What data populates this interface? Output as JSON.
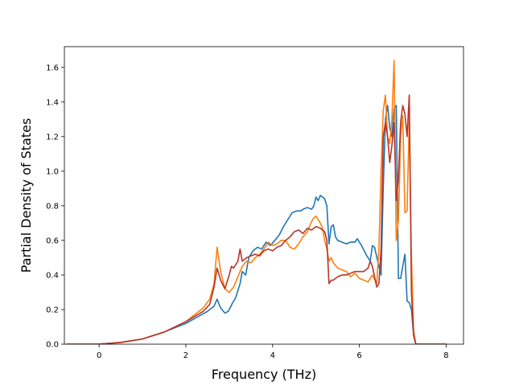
{
  "chart_data": {
    "type": "line",
    "title": "",
    "xlabel": "Frequency (THz)",
    "ylabel": "Partial Density of States",
    "xlim": [
      -0.8,
      8.4
    ],
    "ylim": [
      0.0,
      1.72
    ],
    "xticks": [
      0,
      2,
      4,
      6,
      8
    ],
    "xtick_labels": [
      "0",
      "2",
      "4",
      "6",
      "8"
    ],
    "yticks": [
      0.0,
      0.2,
      0.4,
      0.6,
      0.8,
      1.0,
      1.2,
      1.4,
      1.6
    ],
    "ytick_labels": [
      "0.0",
      "0.2",
      "0.4",
      "0.6",
      "0.8",
      "1.0",
      "1.2",
      "1.4",
      "1.6"
    ],
    "grid": false,
    "legend": "none",
    "colors": [
      "#1f77b4",
      "#ff7f0e",
      "#b8352a"
    ],
    "series": [
      {
        "color": "#1f77b4",
        "x": [
          -0.75,
          0.0,
          0.5,
          1.0,
          1.5,
          2.0,
          2.5,
          2.65,
          2.72,
          2.8,
          2.9,
          2.98,
          3.08,
          3.15,
          3.25,
          3.3,
          3.38,
          3.45,
          3.55,
          3.65,
          3.75,
          3.85,
          3.95,
          4.05,
          4.15,
          4.25,
          4.35,
          4.45,
          4.55,
          4.65,
          4.7,
          4.8,
          4.9,
          4.95,
          5.0,
          5.05,
          5.1,
          5.15,
          5.2,
          5.25,
          5.3,
          5.35,
          5.4,
          5.45,
          5.5,
          5.6,
          5.7,
          5.8,
          5.9,
          5.95,
          6.0,
          6.05,
          6.15,
          6.25,
          6.3,
          6.35,
          6.45,
          6.5,
          6.55,
          6.6,
          6.65,
          6.7,
          6.75,
          6.8,
          6.85,
          6.9,
          6.95,
          7.0,
          7.05,
          7.1,
          7.15,
          7.2,
          7.25,
          7.3,
          8.0
        ],
        "y": [
          0.0,
          0.0,
          0.01,
          0.03,
          0.07,
          0.12,
          0.19,
          0.22,
          0.26,
          0.21,
          0.18,
          0.19,
          0.24,
          0.27,
          0.35,
          0.42,
          0.4,
          0.5,
          0.54,
          0.56,
          0.55,
          0.59,
          0.57,
          0.6,
          0.63,
          0.68,
          0.72,
          0.76,
          0.77,
          0.77,
          0.78,
          0.79,
          0.78,
          0.8,
          0.85,
          0.83,
          0.86,
          0.85,
          0.84,
          0.8,
          0.58,
          0.68,
          0.69,
          0.62,
          0.6,
          0.59,
          0.58,
          0.59,
          0.59,
          0.61,
          0.59,
          0.57,
          0.52,
          0.48,
          0.57,
          0.56,
          0.45,
          0.4,
          0.9,
          1.3,
          1.38,
          1.25,
          1.2,
          1.36,
          1.38,
          0.38,
          0.38,
          0.45,
          0.52,
          0.25,
          0.24,
          0.2,
          0.05,
          0.0,
          0.0
        ]
      },
      {
        "color": "#ff7f0e",
        "x": [
          -0.75,
          0.0,
          0.5,
          1.0,
          1.5,
          2.0,
          2.4,
          2.55,
          2.65,
          2.72,
          2.8,
          2.9,
          3.0,
          3.1,
          3.2,
          3.3,
          3.4,
          3.5,
          3.6,
          3.7,
          3.8,
          3.9,
          4.0,
          4.1,
          4.2,
          4.3,
          4.4,
          4.5,
          4.6,
          4.7,
          4.8,
          4.9,
          4.95,
          5.0,
          5.05,
          5.1,
          5.15,
          5.2,
          5.25,
          5.3,
          5.35,
          5.4,
          5.5,
          5.6,
          5.7,
          5.8,
          5.9,
          6.0,
          6.1,
          6.2,
          6.3,
          6.4,
          6.45,
          6.5,
          6.55,
          6.6,
          6.65,
          6.7,
          6.75,
          6.8,
          6.85,
          6.9,
          6.95,
          7.0,
          7.05,
          7.1,
          7.15,
          7.2,
          7.25,
          7.3,
          8.0
        ],
        "y": [
          0.0,
          0.0,
          0.01,
          0.03,
          0.07,
          0.13,
          0.21,
          0.26,
          0.35,
          0.56,
          0.42,
          0.32,
          0.3,
          0.33,
          0.39,
          0.45,
          0.48,
          0.47,
          0.5,
          0.52,
          0.55,
          0.59,
          0.57,
          0.58,
          0.6,
          0.6,
          0.56,
          0.55,
          0.58,
          0.62,
          0.65,
          0.71,
          0.73,
          0.74,
          0.72,
          0.7,
          0.67,
          0.6,
          0.55,
          0.48,
          0.5,
          0.47,
          0.44,
          0.43,
          0.42,
          0.39,
          0.41,
          0.38,
          0.37,
          0.36,
          0.4,
          0.35,
          0.55,
          1.0,
          1.35,
          1.44,
          1.2,
          1.16,
          1.3,
          1.64,
          0.6,
          0.72,
          1.2,
          1.32,
          0.76,
          0.77,
          1.3,
          0.5,
          0.08,
          0.0,
          0.0
        ]
      },
      {
        "color": "#b8352a",
        "x": [
          -0.75,
          0.0,
          0.5,
          1.0,
          1.5,
          2.0,
          2.4,
          2.55,
          2.65,
          2.72,
          2.8,
          2.9,
          3.0,
          3.05,
          3.1,
          3.2,
          3.25,
          3.3,
          3.4,
          3.5,
          3.6,
          3.7,
          3.8,
          3.9,
          4.0,
          4.1,
          4.2,
          4.3,
          4.4,
          4.5,
          4.6,
          4.7,
          4.8,
          4.9,
          5.0,
          5.1,
          5.2,
          5.25,
          5.3,
          5.35,
          5.4,
          5.5,
          5.6,
          5.7,
          5.8,
          5.9,
          6.0,
          6.1,
          6.2,
          6.25,
          6.3,
          6.4,
          6.45,
          6.5,
          6.55,
          6.6,
          6.65,
          6.7,
          6.75,
          6.8,
          6.85,
          6.9,
          6.95,
          7.0,
          7.05,
          7.1,
          7.15,
          7.2,
          7.25,
          7.3,
          8.0
        ],
        "y": [
          0.0,
          0.0,
          0.01,
          0.03,
          0.07,
          0.13,
          0.19,
          0.23,
          0.33,
          0.44,
          0.37,
          0.32,
          0.4,
          0.45,
          0.44,
          0.48,
          0.55,
          0.48,
          0.5,
          0.51,
          0.52,
          0.51,
          0.54,
          0.55,
          0.54,
          0.56,
          0.57,
          0.6,
          0.62,
          0.65,
          0.66,
          0.64,
          0.67,
          0.66,
          0.68,
          0.67,
          0.65,
          0.6,
          0.35,
          0.37,
          0.37,
          0.39,
          0.4,
          0.4,
          0.41,
          0.42,
          0.42,
          0.42,
          0.44,
          0.48,
          0.45,
          0.33,
          0.35,
          0.55,
          1.2,
          1.28,
          1.2,
          1.05,
          1.15,
          1.28,
          0.83,
          0.96,
          1.28,
          1.38,
          1.33,
          1.2,
          1.44,
          0.3,
          0.05,
          0.0,
          0.0
        ]
      }
    ]
  }
}
